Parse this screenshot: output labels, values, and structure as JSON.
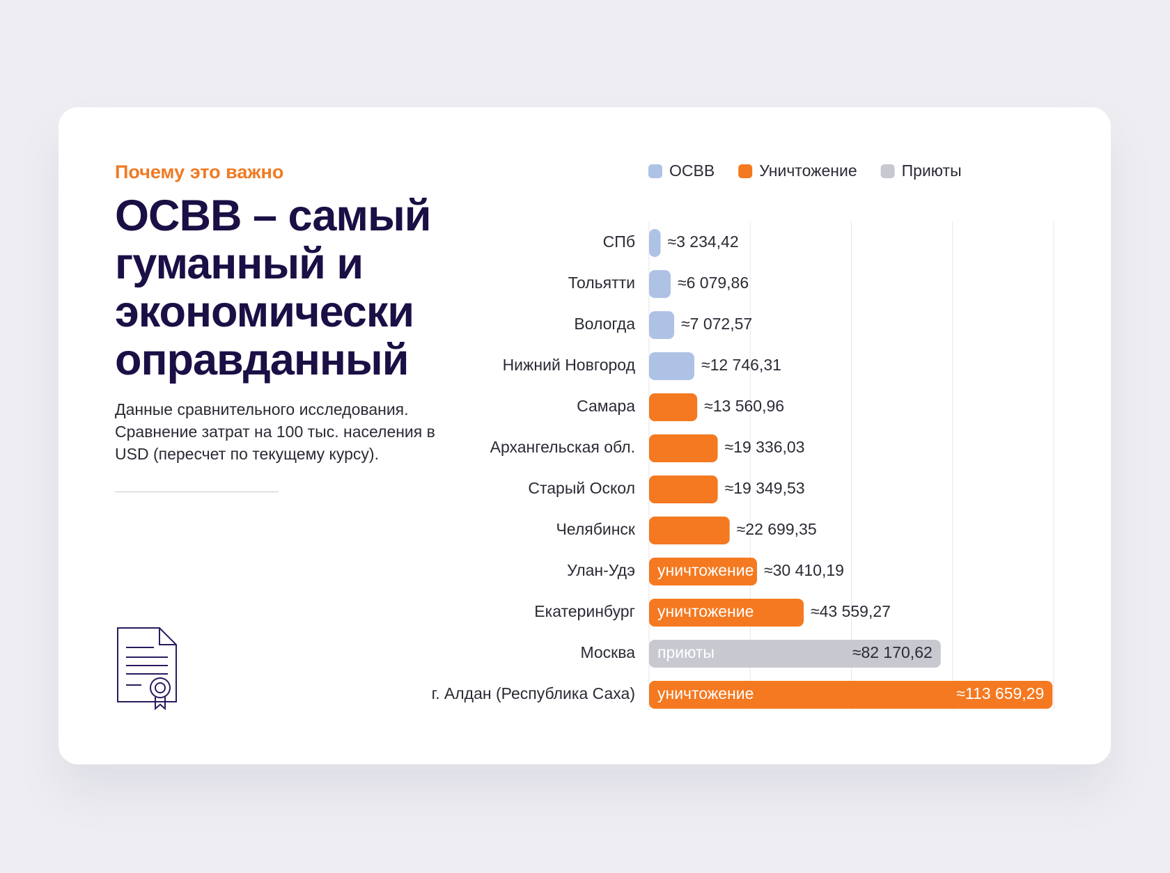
{
  "eyebrow": "Почему это важно",
  "title": "ОСВВ – самый гуманный и экономически оправданный",
  "description": "Данные сравнительного исследования. Сравнение затрат на 100 тыс. населения в USD (пересчет по текущему курсу).",
  "chart_data": {
    "type": "hbar",
    "categories": [
      "СПб",
      "Тольятти",
      "Вологда",
      "Нижний Новгород",
      "Самара",
      "Архангельская обл.",
      "Старый Оскол",
      "Челябинск",
      "Улан-Удэ",
      "Екатеринбург",
      "Москва",
      "г. Алдан (Республика Саха)"
    ],
    "series": [
      {
        "name": "ОСВВ",
        "color": "#aec2e6",
        "values": [
          3234.42,
          6079.86,
          7072.57,
          12746.31,
          null,
          null,
          null,
          null,
          null,
          null,
          null,
          null
        ],
        "value_labels": [
          "≈3 234,42",
          "≈6 079,86",
          "≈7 072,57",
          "≈12 746,31",
          null,
          null,
          null,
          null,
          null,
          null,
          null,
          null
        ],
        "bar_labels": [
          null,
          null,
          null,
          null,
          null,
          null,
          null,
          null,
          null,
          null,
          null,
          null
        ]
      },
      {
        "name": "Уничтожение",
        "color": "#f47920",
        "values": [
          null,
          null,
          null,
          null,
          13560.96,
          19336.03,
          19349.53,
          22699.35,
          30410.19,
          43559.27,
          null,
          113659.29
        ],
        "value_labels": [
          null,
          null,
          null,
          null,
          "≈13 560,96",
          "≈19 336,03",
          "≈19 349,53",
          "≈22 699,35",
          "≈30 410,19",
          "≈43 559,27",
          null,
          "≈113 659,29"
        ],
        "bar_labels": [
          null,
          null,
          null,
          null,
          null,
          null,
          null,
          null,
          "уничтожение",
          "уничтожение",
          null,
          "уничтожение"
        ]
      },
      {
        "name": "Приюты",
        "color": "#c8c9d0",
        "values": [
          null,
          null,
          null,
          null,
          null,
          null,
          null,
          null,
          null,
          null,
          82170.62,
          null
        ],
        "value_labels": [
          null,
          null,
          null,
          null,
          null,
          null,
          null,
          null,
          null,
          null,
          "≈82 170,62",
          null
        ],
        "bar_labels": [
          null,
          null,
          null,
          null,
          null,
          null,
          null,
          null,
          null,
          null,
          "приюты",
          null
        ]
      }
    ],
    "xlim": [
      0,
      114000
    ],
    "grid": true,
    "legend": "top"
  }
}
